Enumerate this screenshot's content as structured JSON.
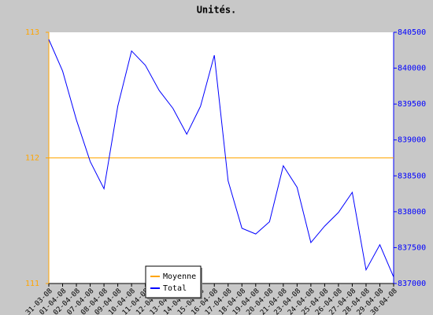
{
  "chart_data": {
    "type": "line",
    "title": "Unités.",
    "categories": [
      "31-03-08",
      "01-04-08",
      "02-04-08",
      "07-04-08",
      "08-04-08",
      "09-04-08",
      "10-04-08",
      "11-04-08",
      "12-04-08",
      "13-04-08",
      "14-04-08",
      "15-04-08",
      "16-04-08",
      "17-04-08",
      "18-04-08",
      "19-04-08",
      "20-04-08",
      "21-04-08",
      "23-04-08",
      "24-04-08",
      "25-04-08",
      "26-04-08",
      "27-04-08",
      "28-04-08",
      "29-04-08",
      "30-04-08"
    ],
    "series": [
      {
        "name": "Moyenne",
        "color": "#ffa500",
        "axis": "y",
        "values": [
          112,
          112,
          112,
          112,
          112,
          112,
          112,
          112,
          112,
          112,
          112,
          112,
          112,
          112,
          112,
          112,
          112,
          112,
          112,
          112,
          112,
          112,
          112,
          112,
          112,
          112
        ]
      },
      {
        "name": "Total",
        "color": "#0000ff",
        "axis": "y2",
        "values": [
          840400,
          839960,
          839280,
          838700,
          838320,
          839470,
          840240,
          840040,
          839690,
          839440,
          839080,
          839470,
          840180,
          838430,
          837770,
          837690,
          837860,
          838640,
          838340,
          837570,
          837800,
          837990,
          838270,
          837190,
          837540,
          837090
        ]
      }
    ],
    "ylim": [
      111,
      113
    ],
    "yticks": [
      111,
      112,
      113
    ],
    "y2lim": [
      837000,
      840500
    ],
    "y2ticks": [
      837000,
      837500,
      838000,
      838500,
      839000,
      839500,
      840000,
      840500
    ],
    "legend": "bottom"
  }
}
